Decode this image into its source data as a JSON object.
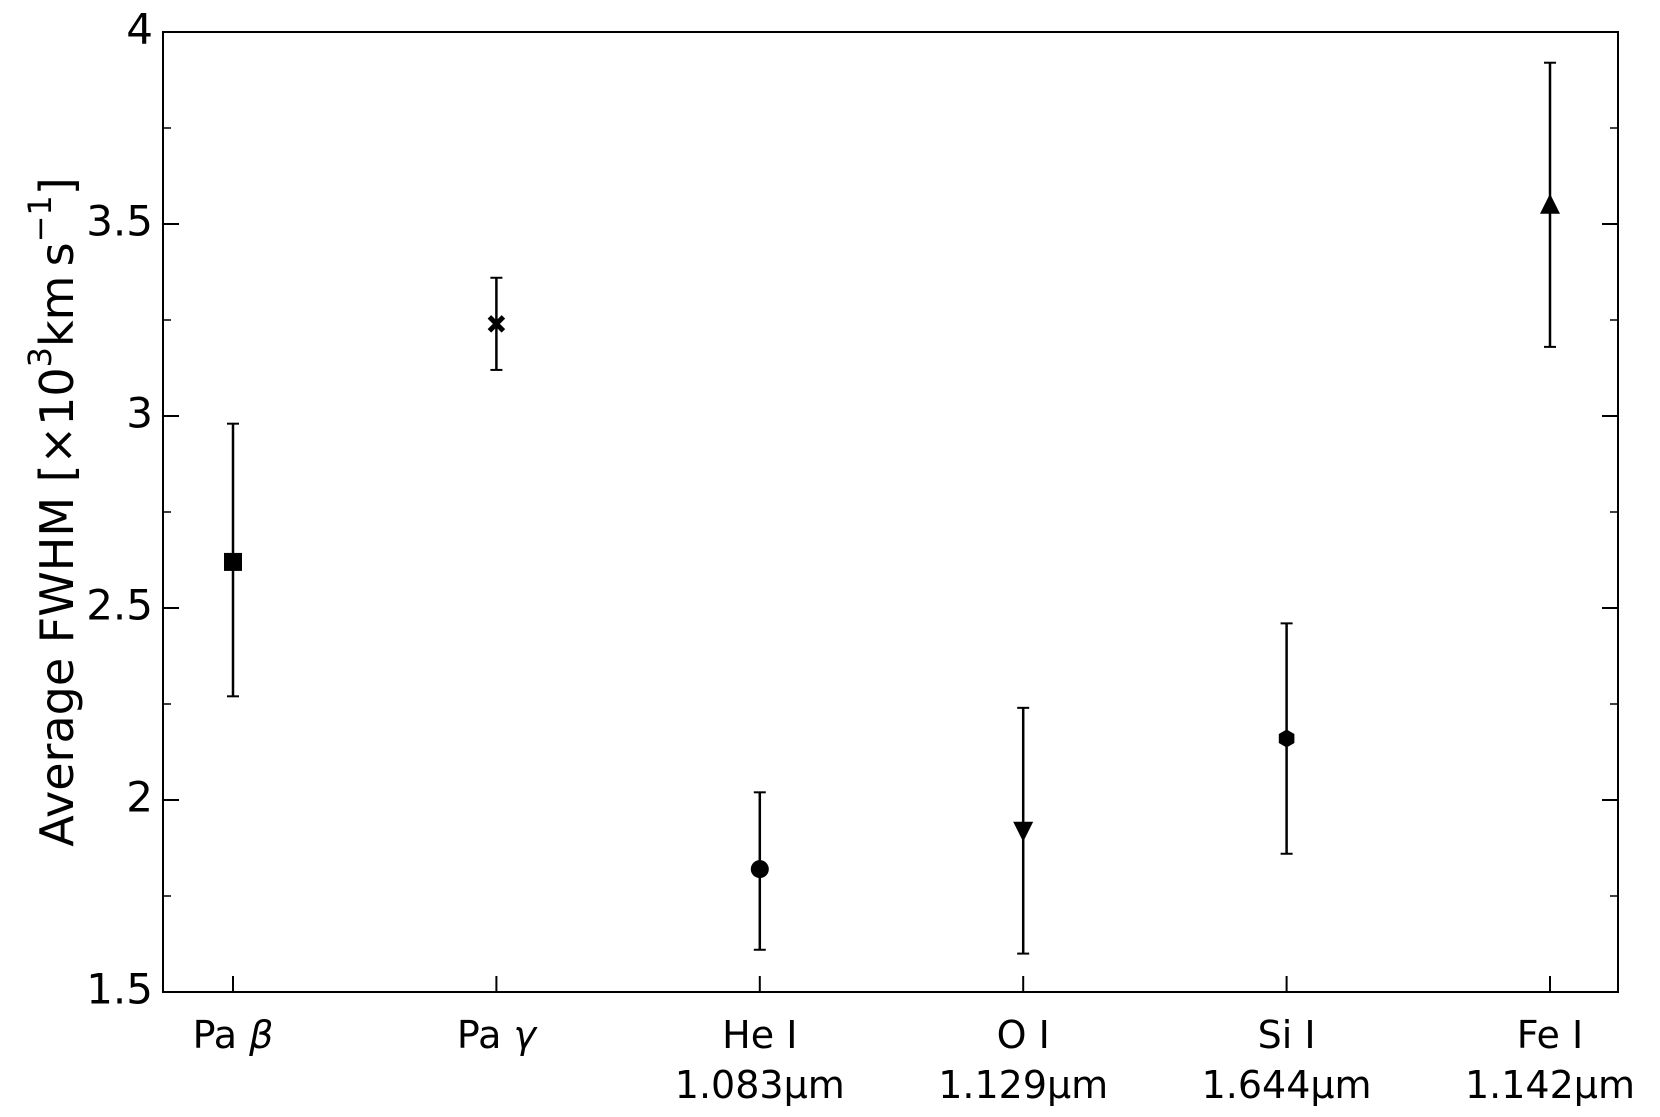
{
  "chart_data": {
    "type": "scatter",
    "ylabel": {
      "prefix": "Average FWHM [×10",
      "exp1": "3",
      "middle": "km s",
      "exp2": "−1",
      "suffix": "]"
    },
    "ylim": [
      1.5,
      4.0
    ],
    "yticks": [
      {
        "value": 1.5,
        "label": "1.5"
      },
      {
        "value": 2.0,
        "label": "2"
      },
      {
        "value": 2.5,
        "label": "2.5"
      },
      {
        "value": 3.0,
        "label": "3"
      },
      {
        "value": 3.5,
        "label": "3.5"
      },
      {
        "value": 4.0,
        "label": "4"
      }
    ],
    "y_minor_step": 0.25,
    "grid": false,
    "error_bars": true,
    "colors": {
      "marker": "#000000",
      "axes": "#000000"
    },
    "points": [
      {
        "label": "Pa β",
        "label_parts": [
          "Pa ",
          "β"
        ],
        "line2": "",
        "y": 2.62,
        "yerr_low": 2.27,
        "yerr_high": 2.98,
        "marker": "square"
      },
      {
        "label": "Pa γ",
        "label_parts": [
          "Pa ",
          "γ"
        ],
        "line2": "",
        "y": 3.24,
        "yerr_low": 3.12,
        "yerr_high": 3.36,
        "marker": "x"
      },
      {
        "label": "He I",
        "label_parts": [
          "He I",
          ""
        ],
        "line2": "1.083µm",
        "y": 1.82,
        "yerr_low": 1.61,
        "yerr_high": 2.02,
        "marker": "circle"
      },
      {
        "label": "O I",
        "label_parts": [
          "O I",
          ""
        ],
        "line2": "1.129µm",
        "y": 1.92,
        "yerr_low": 1.6,
        "yerr_high": 2.24,
        "marker": "triangle-down"
      },
      {
        "label": "Si I",
        "label_parts": [
          "Si I",
          ""
        ],
        "line2": "1.644µm",
        "y": 2.16,
        "yerr_low": 1.86,
        "yerr_high": 2.46,
        "marker": "hexagon"
      },
      {
        "label": "Fe I",
        "label_parts": [
          "Fe I",
          ""
        ],
        "line2": "1.142µm",
        "y": 3.55,
        "yerr_low": 3.18,
        "yerr_high": 3.92,
        "marker": "triangle-up"
      }
    ]
  }
}
